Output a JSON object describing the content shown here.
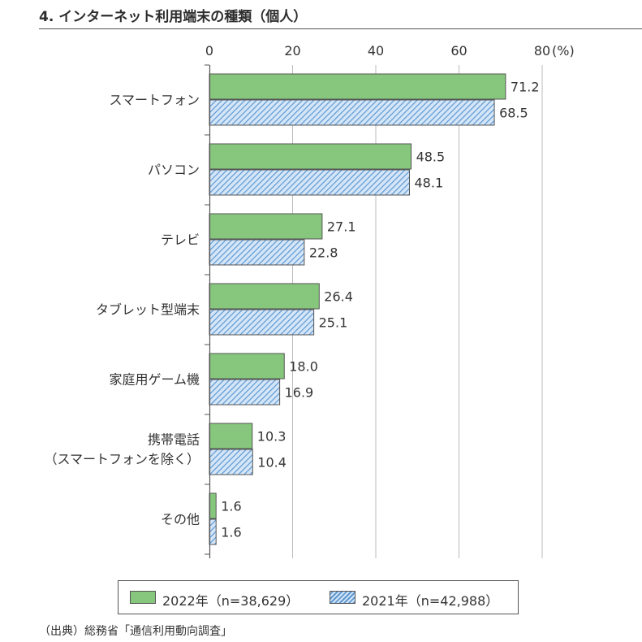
{
  "title": "4. インターネット利用端末の種類（個人）",
  "colors": {
    "s2022_fill": "#86c77d",
    "s2022_stroke": "#555555",
    "s2021_fill": "#d4e6f8",
    "s2021_hatch": "#5f98d0",
    "grid": "#bbbbbb",
    "axis": "#555555"
  },
  "chart_data": {
    "type": "bar",
    "orientation": "horizontal",
    "categories": [
      "スマートフォン",
      "パソコン",
      "テレビ",
      "タブレット型端末",
      "家庭用ゲーム機",
      "携帯電話\n（スマートフォンを除く）",
      "その他"
    ],
    "series": [
      {
        "name": "2022年（n=38,629）",
        "values": [
          71.2,
          48.5,
          27.1,
          26.4,
          18.0,
          10.3,
          1.6
        ],
        "labels": [
          "71.2",
          "48.5",
          "27.1",
          "26.4",
          "18.0",
          "10.3",
          "1.6"
        ]
      },
      {
        "name": "2021年（n=42,988）",
        "values": [
          68.5,
          48.1,
          22.8,
          25.1,
          16.9,
          10.4,
          1.6
        ],
        "labels": [
          "68.5",
          "48.1",
          "22.8",
          "25.1",
          "16.9",
          "10.4",
          "1.6"
        ]
      }
    ],
    "xlim": [
      0,
      80
    ],
    "xticks": [
      0,
      20,
      40,
      60,
      80
    ],
    "unit_label": "(%)",
    "grid": true,
    "legend_position": "bottom"
  },
  "legend": {
    "s2022": "2022年（n=38,629）",
    "s2021": "2021年（n=42,988）"
  },
  "source": "（出典）総務省「通信利用動向調査」"
}
